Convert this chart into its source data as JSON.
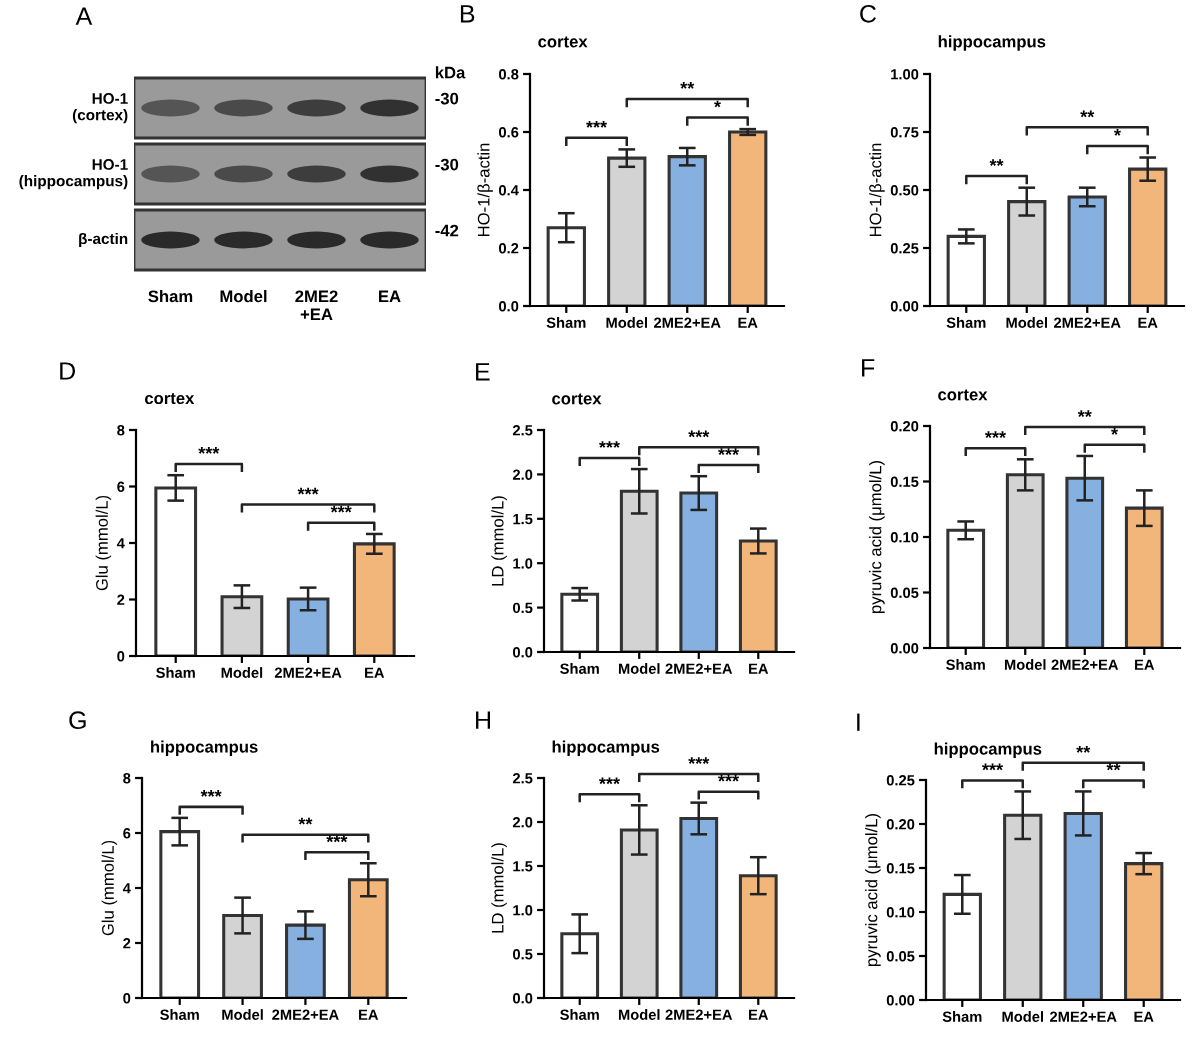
{
  "chart_data": [
    {
      "type": "other",
      "title": "A",
      "categories": [
        "Sham",
        "Model",
        "2ME2\n+EA",
        "EA"
      ],
      "annotations": [
        "HO-1\n(cortex)",
        "HO-1\n(hippocampus)",
        "β-actin",
        "kDa",
        "-30",
        "-30",
        "-42"
      ]
    },
    {
      "type": "bar",
      "title": "B",
      "subtitle": "cortex",
      "ylabel": "HO-1/β-actin",
      "categories": [
        "Sham",
        "Model",
        "2ME2+EA",
        "EA"
      ],
      "values": [
        0.27,
        0.51,
        0.515,
        0.6
      ],
      "errors": [
        0.05,
        0.03,
        0.03,
        0.01
      ],
      "colors": [
        "#ffffff",
        "#d3d3d3",
        "#86b0e0",
        "#f2b57a"
      ],
      "ylim": [
        0,
        0.8
      ],
      "yticks": [
        {
          "value": 0,
          "label": "0.0"
        },
        0.2,
        0.4,
        0.6,
        0.8
      ],
      "annotations": [
        "***",
        "**",
        "*"
      ]
    },
    {
      "type": "bar",
      "title": "C",
      "subtitle": "hippocampus",
      "ylabel": "HO-1/β-actin",
      "categories": [
        "Sham",
        "Model",
        "2ME2+EA",
        "EA"
      ],
      "values": [
        0.3,
        0.45,
        0.47,
        0.59
      ],
      "errors": [
        0.03,
        0.06,
        0.04,
        0.05
      ],
      "colors": [
        "#ffffff",
        "#d3d3d3",
        "#86b0e0",
        "#f2b57a"
      ],
      "ylim": [
        0,
        1.0
      ],
      "yticks": [
        {
          "value": 0,
          "label": "0.00"
        },
        0.25,
        {
          "value": 0.5,
          "label": "0.50"
        },
        0.75,
        {
          "value": 1.0,
          "label": "1.00"
        }
      ],
      "annotations": [
        "**",
        "**",
        "*"
      ]
    },
    {
      "type": "bar",
      "title": "D",
      "subtitle": "cortex",
      "ylabel": "Glu (mmol/L)",
      "categories": [
        "Sham",
        "Model",
        "2ME2+EA",
        "EA"
      ],
      "values": [
        5.95,
        2.1,
        2.02,
        3.97
      ],
      "errors": [
        0.45,
        0.4,
        0.4,
        0.35
      ],
      "colors": [
        "#ffffff",
        "#d3d3d3",
        "#86b0e0",
        "#f2b57a"
      ],
      "ylim": [
        0,
        8
      ],
      "yticks": [
        0,
        2,
        4,
        6,
        8
      ],
      "annotations": [
        "***",
        "***",
        "***"
      ]
    },
    {
      "type": "bar",
      "title": "E",
      "subtitle": "cortex",
      "ylabel": "LD (mmol/L)",
      "categories": [
        "Sham",
        "Model",
        "2ME2+EA",
        "EA"
      ],
      "values": [
        0.65,
        1.81,
        1.79,
        1.25
      ],
      "errors": [
        0.07,
        0.25,
        0.19,
        0.14
      ],
      "colors": [
        "#ffffff",
        "#d3d3d3",
        "#86b0e0",
        "#f2b57a"
      ],
      "ylim": [
        0,
        2.5
      ],
      "yticks": [
        {
          "value": 0,
          "label": "0.0"
        },
        0.5,
        {
          "value": 1,
          "label": "1.0"
        },
        1.5,
        {
          "value": 2,
          "label": "2.0"
        },
        2.5
      ],
      "annotations": [
        "***",
        "***",
        "***"
      ]
    },
    {
      "type": "bar",
      "title": "F",
      "subtitle": "cortex",
      "ylabel": "pyruvic acid (μmol/L)",
      "categories": [
        "Sham",
        "Model",
        "2ME2+EA",
        "EA"
      ],
      "values": [
        0.106,
        0.156,
        0.153,
        0.126
      ],
      "errors": [
        0.008,
        0.014,
        0.02,
        0.016
      ],
      "colors": [
        "#ffffff",
        "#d3d3d3",
        "#86b0e0",
        "#f2b57a"
      ],
      "ylim": [
        0,
        0.2
      ],
      "yticks": [
        {
          "value": 0,
          "label": "0.00"
        },
        0.05,
        {
          "value": 0.1,
          "label": "0.10"
        },
        0.15,
        {
          "value": 0.2,
          "label": "0.20"
        }
      ],
      "annotations": [
        "***",
        "**",
        "*"
      ]
    },
    {
      "type": "bar",
      "title": "G",
      "subtitle": "hippocampus",
      "ylabel": "Glu (mmol/L)",
      "categories": [
        "Sham",
        "Model",
        "2ME2+EA",
        "EA"
      ],
      "values": [
        6.05,
        3.0,
        2.65,
        4.3
      ],
      "errors": [
        0.5,
        0.65,
        0.5,
        0.6
      ],
      "colors": [
        "#ffffff",
        "#d3d3d3",
        "#86b0e0",
        "#f2b57a"
      ],
      "ylim": [
        0,
        8
      ],
      "yticks": [
        0,
        2,
        4,
        6,
        8
      ],
      "annotations": [
        "***",
        "**",
        "***"
      ]
    },
    {
      "type": "bar",
      "title": "H",
      "subtitle": "hippocampus",
      "ylabel": "LD (mmol/L)",
      "categories": [
        "Sham",
        "Model",
        "2ME2+EA",
        "EA"
      ],
      "values": [
        0.73,
        1.91,
        2.04,
        1.39
      ],
      "errors": [
        0.22,
        0.28,
        0.18,
        0.21
      ],
      "colors": [
        "#ffffff",
        "#d3d3d3",
        "#86b0e0",
        "#f2b57a"
      ],
      "ylim": [
        0,
        2.5
      ],
      "yticks": [
        {
          "value": 0,
          "label": "0.0"
        },
        0.5,
        {
          "value": 1,
          "label": "1.0"
        },
        1.5,
        {
          "value": 2,
          "label": "2.0"
        },
        2.5
      ],
      "annotations": [
        "***",
        "***",
        "***"
      ]
    },
    {
      "type": "bar",
      "title": "I",
      "subtitle": "hippocampus",
      "ylabel": "pyruvic acid (μmol/L)",
      "categories": [
        "Sham",
        "Model",
        "2ME2+EA",
        "EA"
      ],
      "values": [
        0.12,
        0.21,
        0.212,
        0.155
      ],
      "errors": [
        0.022,
        0.027,
        0.025,
        0.012
      ],
      "colors": [
        "#ffffff",
        "#d3d3d3",
        "#86b0e0",
        "#f2b57a"
      ],
      "ylim": [
        0,
        0.25
      ],
      "yticks": [
        {
          "value": 0,
          "label": "0.00"
        },
        0.05,
        {
          "value": 0.1,
          "label": "0.10"
        },
        0.15,
        {
          "value": 0.2,
          "label": "0.20"
        },
        0.25
      ],
      "annotations": [
        "***",
        "**",
        "**"
      ]
    }
  ]
}
